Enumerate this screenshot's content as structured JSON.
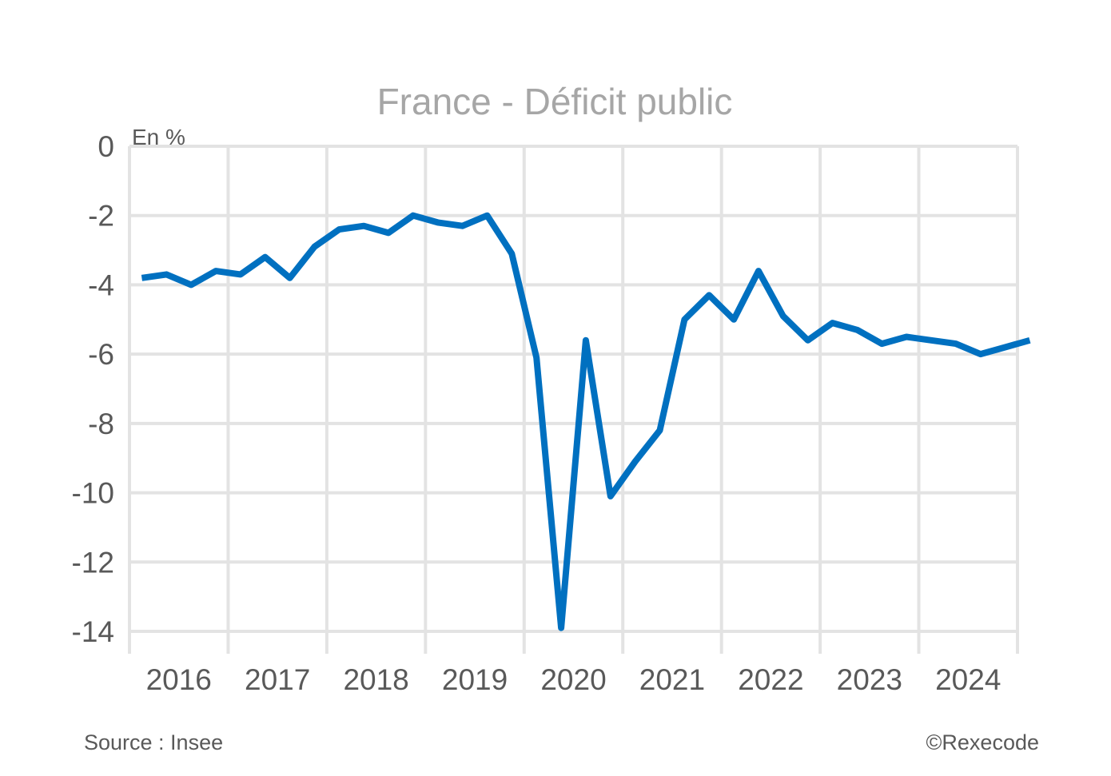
{
  "chart_data": {
    "type": "line",
    "title": "France - Déficit public",
    "ylabel": "En %",
    "xlabel": "",
    "ylim": [
      -14,
      0
    ],
    "yticks": [
      0,
      -2,
      -4,
      -6,
      -8,
      -10,
      -12,
      -14
    ],
    "ytick_labels": [
      "0",
      "-2",
      "-4",
      "-6",
      "-8",
      "-10",
      "-12",
      "-14"
    ],
    "xlim": [
      2016,
      2025
    ],
    "xticks": [
      2016,
      2017,
      2018,
      2019,
      2020,
      2021,
      2022,
      2023,
      2024,
      2025
    ],
    "year_labels": [
      "2016",
      "2017",
      "2018",
      "2019",
      "2020",
      "2021",
      "2022",
      "2023",
      "2024"
    ],
    "grid": true,
    "series": [
      {
        "color": "#0070c0",
        "x": [
          2016.125,
          2016.375,
          2016.625,
          2016.875,
          2017.125,
          2017.375,
          2017.625,
          2017.875,
          2018.125,
          2018.375,
          2018.625,
          2018.875,
          2019.125,
          2019.375,
          2019.625,
          2019.875,
          2020.125,
          2020.375,
          2020.625,
          2020.875,
          2021.125,
          2021.375,
          2021.625,
          2021.875,
          2022.125,
          2022.375,
          2022.625,
          2022.875,
          2023.125,
          2023.375,
          2023.625,
          2023.875,
          2024.125,
          2024.375,
          2024.625,
          2024.875,
          2025.125
        ],
        "values": [
          -3.8,
          -3.7,
          -4.0,
          -3.6,
          -3.7,
          -3.2,
          -3.8,
          -2.9,
          -2.4,
          -2.3,
          -2.5,
          -2.0,
          -2.2,
          -2.3,
          -2.0,
          -3.1,
          -6.1,
          -13.9,
          -5.6,
          -10.1,
          -9.1,
          -8.2,
          -5.0,
          -4.3,
          -5.0,
          -3.6,
          -4.9,
          -5.6,
          -5.1,
          -5.3,
          -5.7,
          -5.5,
          -5.6,
          -5.7,
          -6.0,
          -5.8,
          -5.6
        ]
      }
    ]
  },
  "footer": {
    "source": "Source : Insee",
    "copyright": "©Rexecode"
  }
}
